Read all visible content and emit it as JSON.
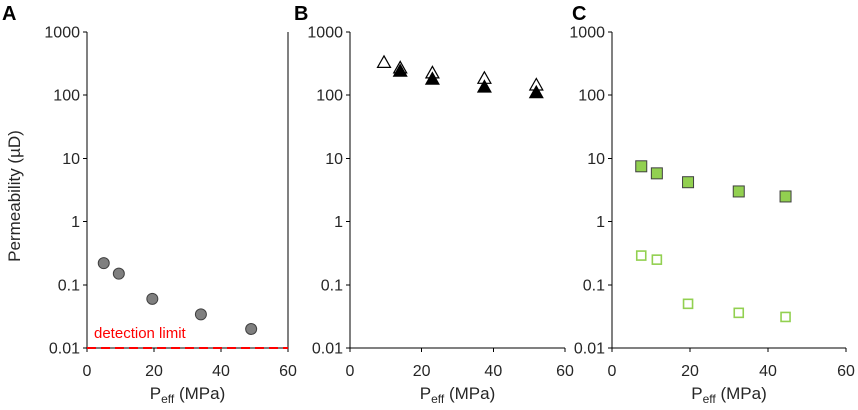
{
  "chart_data": [
    {
      "panel": "A",
      "type": "scatter",
      "ylabel": "Permeability (µD)",
      "xlabel": {
        "base": "P",
        "sub": "eff",
        "rest": " (MPa)"
      },
      "xlim": [
        0,
        60
      ],
      "ylim": [
        0.01,
        1000
      ],
      "yscale": "log",
      "xticks": [
        0,
        20,
        40,
        60
      ],
      "yticks": [
        1000,
        100,
        10,
        1,
        0.1,
        0.01
      ],
      "grid": false,
      "series": [
        {
          "marker": "circle",
          "fill": "#7f7f7f",
          "stroke": "#404040",
          "x": [
            5,
            9.5,
            19.5,
            34,
            49
          ],
          "y": [
            0.22,
            0.15,
            0.06,
            0.034,
            0.02
          ]
        }
      ],
      "annotations": [
        {
          "type": "hline",
          "y": 0.01,
          "line_style": "dashed",
          "color": "#ff0000",
          "text": "detection limit"
        }
      ]
    },
    {
      "panel": "B",
      "type": "scatter",
      "xlabel": {
        "base": "P",
        "sub": "eff",
        "rest": " (MPa)"
      },
      "xlim": [
        0,
        60
      ],
      "ylim": [
        0.01,
        1000
      ],
      "yscale": "log",
      "xticks": [
        0,
        20,
        40,
        60
      ],
      "yticks": [
        1000,
        100,
        10,
        1,
        0.1,
        0.01
      ],
      "grid": false,
      "series": [
        {
          "marker": "triangle-open",
          "fill": "#ffffff",
          "stroke": "#000000",
          "x": [
            9.5,
            14,
            23,
            37.5,
            52
          ],
          "y": [
            330,
            270,
            225,
            185,
            145
          ]
        },
        {
          "marker": "triangle-filled",
          "fill": "#000000",
          "stroke": "#000000",
          "x": [
            14,
            23,
            37.5,
            52
          ],
          "y": [
            240,
            180,
            135,
            110
          ]
        }
      ]
    },
    {
      "panel": "C",
      "type": "scatter",
      "xlabel": {
        "base": "P",
        "sub": "eff",
        "rest": " (MPa)"
      },
      "xlim": [
        0,
        60
      ],
      "ylim": [
        0.01,
        1000
      ],
      "yscale": "log",
      "xticks": [
        0,
        20,
        40,
        60
      ],
      "yticks": [
        1000,
        100,
        10,
        1,
        0.1,
        0.01
      ],
      "grid": false,
      "series": [
        {
          "marker": "square-filled",
          "fill": "#92d050",
          "stroke": "#3f3f3f",
          "x": [
            7.5,
            11.5,
            19.5,
            32.5,
            44.5
          ],
          "y": [
            7.5,
            5.8,
            4.2,
            3.0,
            2.5
          ]
        },
        {
          "marker": "square-open",
          "fill": "#ffffff",
          "stroke": "#92d050",
          "x": [
            7.5,
            11.5,
            19.5,
            32.5,
            44.5
          ],
          "y": [
            0.29,
            0.25,
            0.05,
            0.036,
            0.031
          ]
        }
      ]
    }
  ]
}
